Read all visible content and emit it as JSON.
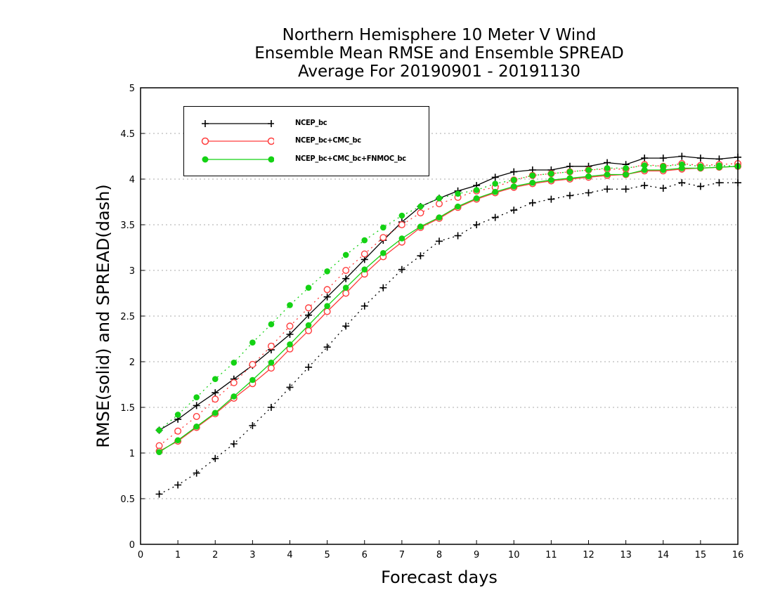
{
  "chart_data": {
    "type": "line",
    "title": [
      "Northern Hemisphere 10 Meter V Wind",
      "Ensemble Mean RMSE and Ensemble SPREAD",
      "Average For 20190901 - 20191130"
    ],
    "xlabel": "Forecast days",
    "ylabel": "RMSE(solid) and SPREAD(dash)",
    "xlim": [
      0,
      16
    ],
    "ylim": [
      0,
      5
    ],
    "xticks": [
      "0",
      "1",
      "2",
      "3",
      "4",
      "5",
      "6",
      "7",
      "8",
      "9",
      "10",
      "11",
      "12",
      "13",
      "14",
      "15",
      "16"
    ],
    "yticks": [
      "0",
      "0.5",
      "1",
      "1.5",
      "2",
      "2.5",
      "3",
      "3.5",
      "4",
      "4.5",
      "5"
    ],
    "grid": "horizontal-dotted",
    "legend_position": "top-left",
    "x": [
      0.5,
      1,
      1.5,
      2,
      2.5,
      3,
      3.5,
      4,
      4.5,
      5,
      5.5,
      6,
      6.5,
      7,
      7.5,
      8,
      8.5,
      9,
      9.5,
      10,
      10.5,
      11,
      11.5,
      12,
      12.5,
      13,
      13.5,
      14,
      14.5,
      15,
      15.5,
      16
    ],
    "series": [
      {
        "name": "NCEP_bc",
        "color": "#000000",
        "marker": "plus",
        "rmse": [
          1.25,
          1.37,
          1.52,
          1.66,
          1.81,
          1.96,
          2.13,
          2.3,
          2.51,
          2.71,
          2.91,
          3.12,
          3.33,
          3.53,
          3.7,
          3.79,
          3.87,
          3.93,
          4.02,
          4.08,
          4.1,
          4.1,
          4.14,
          4.14,
          4.18,
          4.16,
          4.23,
          4.23,
          4.25,
          4.23,
          4.22,
          4.24
        ],
        "spread": [
          0.55,
          0.65,
          0.78,
          0.94,
          1.1,
          1.3,
          1.5,
          1.72,
          1.94,
          2.16,
          2.39,
          2.61,
          2.81,
          3.01,
          3.16,
          3.32,
          3.38,
          3.5,
          3.58,
          3.66,
          3.74,
          3.78,
          3.82,
          3.85,
          3.89,
          3.89,
          3.93,
          3.9,
          3.96,
          3.92,
          3.96,
          3.96
        ]
      },
      {
        "name": "NCEP_bc+CMC_bc",
        "color": "#ff3c3c",
        "marker": "open-circle",
        "rmse": [
          1.02,
          1.13,
          1.28,
          1.43,
          1.6,
          1.76,
          1.93,
          2.14,
          2.34,
          2.55,
          2.75,
          2.96,
          3.15,
          3.31,
          3.47,
          3.57,
          3.69,
          3.78,
          3.85,
          3.91,
          3.95,
          3.98,
          4.0,
          4.02,
          4.04,
          4.05,
          4.09,
          4.09,
          4.11,
          4.12,
          4.13,
          4.14
        ],
        "spread": [
          1.08,
          1.24,
          1.4,
          1.59,
          1.77,
          1.97,
          2.17,
          2.39,
          2.59,
          2.79,
          3.0,
          3.18,
          3.36,
          3.5,
          3.63,
          3.73,
          3.8,
          3.87,
          3.91,
          3.99,
          4.04,
          4.06,
          4.08,
          4.1,
          4.11,
          4.11,
          4.16,
          4.14,
          4.17,
          4.15,
          4.16,
          4.17
        ]
      },
      {
        "name": "NCEP_bc+CMC_bc+FNMOC_bc",
        "color": "#14d214",
        "marker": "filled-circle",
        "rmse": [
          1.01,
          1.14,
          1.29,
          1.44,
          1.62,
          1.8,
          1.99,
          2.19,
          2.4,
          2.61,
          2.81,
          3.01,
          3.19,
          3.35,
          3.48,
          3.58,
          3.7,
          3.79,
          3.86,
          3.92,
          3.96,
          3.99,
          4.01,
          4.03,
          4.05,
          4.05,
          4.1,
          4.1,
          4.12,
          4.12,
          4.13,
          4.14
        ],
        "spread": [
          1.25,
          1.42,
          1.61,
          1.81,
          1.99,
          2.21,
          2.41,
          2.62,
          2.81,
          2.99,
          3.17,
          3.33,
          3.47,
          3.6,
          3.7,
          3.79,
          3.84,
          3.88,
          3.95,
          3.99,
          4.04,
          4.06,
          4.08,
          4.1,
          4.12,
          4.12,
          4.15,
          4.14,
          4.16,
          4.14,
          4.15,
          4.14
        ]
      }
    ]
  }
}
